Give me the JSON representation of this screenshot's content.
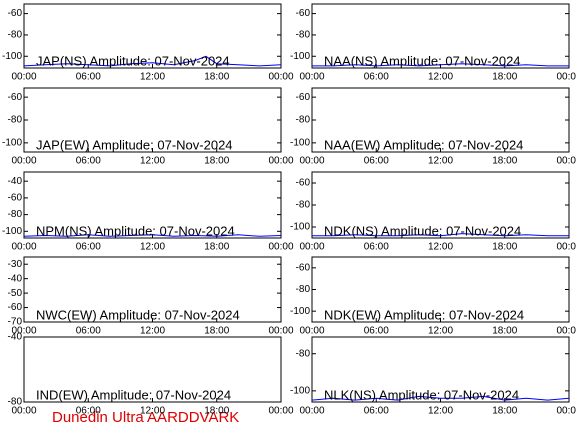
{
  "chart_data": [
    {
      "type": "line",
      "title": "JAP(NS) Amplitude: 07-Nov-2024",
      "color": "#0000ff",
      "xlim": [
        0,
        24
      ],
      "xticks": [
        {
          "value": 0,
          "label": "00:00"
        },
        {
          "value": 6,
          "label": "06:00"
        },
        {
          "value": 12,
          "label": "12:00"
        },
        {
          "value": 18,
          "label": "18:00"
        },
        {
          "value": 24,
          "label": "00:00"
        }
      ],
      "ylim": [
        -111,
        -51
      ],
      "yticks": [
        -60,
        -80,
        -100
      ],
      "x": [
        0,
        2,
        4,
        6,
        8,
        10,
        12,
        14,
        16,
        17,
        18,
        20,
        22,
        24
      ],
      "values": [
        -109,
        -108,
        -107,
        -108,
        -109,
        -107,
        -106,
        -108,
        -104,
        -100,
        -107,
        -108,
        -109,
        -108
      ]
    },
    {
      "type": "line",
      "title": "NAA(NS) Amplitude: 07-Nov-2024",
      "color": "#0000ff",
      "xlim": [
        0,
        24
      ],
      "xticks": [
        {
          "value": 0,
          "label": "00:00"
        },
        {
          "value": 6,
          "label": "06:00"
        },
        {
          "value": 12,
          "label": "12:00"
        },
        {
          "value": 18,
          "label": "18:00"
        },
        {
          "value": 24,
          "label": "00:00"
        }
      ],
      "ylim": [
        -111,
        -51
      ],
      "yticks": [
        -60,
        -80,
        -100
      ],
      "x": [
        0,
        2,
        4,
        6,
        8,
        10,
        12,
        14,
        16,
        18,
        20,
        22,
        24
      ],
      "values": [
        -109,
        -109,
        -108,
        -109,
        -108,
        -109,
        -108,
        -107,
        -108,
        -109,
        -108,
        -109,
        -109
      ]
    },
    {
      "type": "line",
      "title": "JAP(EW) Amplitude: 07-Nov-2024",
      "color": "#0000ff",
      "xlim": [
        0,
        24
      ],
      "xticks": [
        {
          "value": 0,
          "label": "00:00"
        },
        {
          "value": 6,
          "label": "06:00"
        },
        {
          "value": 12,
          "label": "12:00"
        },
        {
          "value": 18,
          "label": "18:00"
        },
        {
          "value": 24,
          "label": "00:00"
        }
      ],
      "ylim": [
        -108,
        -52
      ],
      "yticks": [
        -60,
        -80,
        -100
      ]
    },
    {
      "type": "line",
      "title": "NAA(EW) Amplitude: 07-Nov-2024",
      "color": "#0000ff",
      "xlim": [
        0,
        24
      ],
      "xticks": [
        {
          "value": 0,
          "label": "00:00"
        },
        {
          "value": 6,
          "label": "06:00"
        },
        {
          "value": 12,
          "label": "12:00"
        },
        {
          "value": 18,
          "label": "18:00"
        },
        {
          "value": 24,
          "label": "00:00"
        }
      ],
      "ylim": [
        -108,
        -52
      ],
      "yticks": [
        -60,
        -80,
        -100
      ]
    },
    {
      "type": "line",
      "title": "NPM(NS) Amplitude: 07-Nov-2024",
      "color": "#0000ff",
      "xlim": [
        0,
        24
      ],
      "xticks": [
        {
          "value": 0,
          "label": "00:00"
        },
        {
          "value": 6,
          "label": "06:00"
        },
        {
          "value": 12,
          "label": "12:00"
        },
        {
          "value": 18,
          "label": "18:00"
        },
        {
          "value": 24,
          "label": "00:00"
        }
      ],
      "ylim": [
        -108,
        -29
      ],
      "yticks": [
        -40,
        -60,
        -80,
        -100
      ],
      "x": [
        0,
        2,
        4,
        6,
        8,
        10,
        12,
        14,
        16,
        18,
        20,
        22,
        24
      ],
      "values": [
        -106,
        -105,
        -106,
        -104,
        -106,
        -105,
        -104,
        -106,
        -105,
        -106,
        -104,
        -106,
        -105
      ]
    },
    {
      "type": "line",
      "title": "NDK(NS) Amplitude: 07-Nov-2024",
      "color": "#0000ff",
      "xlim": [
        0,
        24
      ],
      "xticks": [
        {
          "value": 0,
          "label": "00:00"
        },
        {
          "value": 6,
          "label": "06:00"
        },
        {
          "value": 12,
          "label": "12:00"
        },
        {
          "value": 18,
          "label": "18:00"
        },
        {
          "value": 24,
          "label": "00:00"
        }
      ],
      "ylim": [
        -110,
        -50
      ],
      "yticks": [
        -60,
        -80,
        -100
      ],
      "x": [
        0,
        2,
        4,
        6,
        8,
        10,
        12,
        14,
        16,
        18,
        20,
        22,
        24
      ],
      "values": [
        -108,
        -108,
        -107,
        -108,
        -108,
        -107,
        -108,
        -106,
        -107,
        -108,
        -107,
        -108,
        -108
      ]
    },
    {
      "type": "line",
      "title": "NWC(EW) Amplitude: 07-Nov-2024",
      "color": "#0000ff",
      "xlim": [
        0,
        24
      ],
      "xticks": [
        {
          "value": 0,
          "label": "00:00"
        },
        {
          "value": 6,
          "label": "06:00"
        },
        {
          "value": 12,
          "label": "12:00"
        },
        {
          "value": 18,
          "label": "18:00"
        },
        {
          "value": 24,
          "label": "00:00"
        }
      ],
      "ylim": [
        -70,
        -25
      ],
      "yticks": [
        -30,
        -40,
        -50,
        -60,
        -70
      ]
    },
    {
      "type": "line",
      "title": "NDK(EW) Amplitude: 07-Nov-2024",
      "color": "#0000ff",
      "xlim": [
        0,
        24
      ],
      "xticks": [
        {
          "value": 0,
          "label": "00:00"
        },
        {
          "value": 6,
          "label": "06:00"
        },
        {
          "value": 12,
          "label": "12:00"
        },
        {
          "value": 18,
          "label": "18:00"
        },
        {
          "value": 24,
          "label": "00:00"
        }
      ],
      "ylim": [
        -110,
        -50
      ],
      "yticks": [
        -60,
        -80,
        -100
      ]
    },
    {
      "type": "line",
      "title": "IND(EW) Amplitude: 07-Nov-2024",
      "color": "#0000ff",
      "xlim": [
        0,
        24
      ],
      "xticks": [
        {
          "value": 0,
          "label": "00:00"
        },
        {
          "value": 6,
          "label": "06:00"
        },
        {
          "value": 12,
          "label": "12:00"
        },
        {
          "value": 18,
          "label": "18:00"
        },
        {
          "value": 24,
          "label": "00:00"
        }
      ],
      "ylim": [
        -80,
        -40
      ],
      "yticks": [
        -40,
        -80
      ]
    },
    {
      "type": "line",
      "title": "NLK(NS) Amplitude: 07-Nov-2024",
      "color": "#0000ff",
      "xlim": [
        0,
        24
      ],
      "xticks": [
        {
          "value": 0,
          "label": "00:00"
        },
        {
          "value": 6,
          "label": "06:00"
        },
        {
          "value": 12,
          "label": "12:00"
        },
        {
          "value": 18,
          "label": "18:00"
        },
        {
          "value": 24,
          "label": "00:00"
        }
      ],
      "ylim": [
        -106,
        -71
      ],
      "yticks": [
        -80,
        -100
      ],
      "x": [
        0,
        2,
        4,
        6,
        8,
        10,
        12,
        14,
        16,
        18,
        20,
        22,
        24
      ],
      "values": [
        -105,
        -104,
        -105,
        -104,
        -105,
        -103,
        -104,
        -104,
        -103,
        -105,
        -104,
        -105,
        -104
      ]
    }
  ],
  "footer": "Dunedin Ultra AARDDVARK"
}
